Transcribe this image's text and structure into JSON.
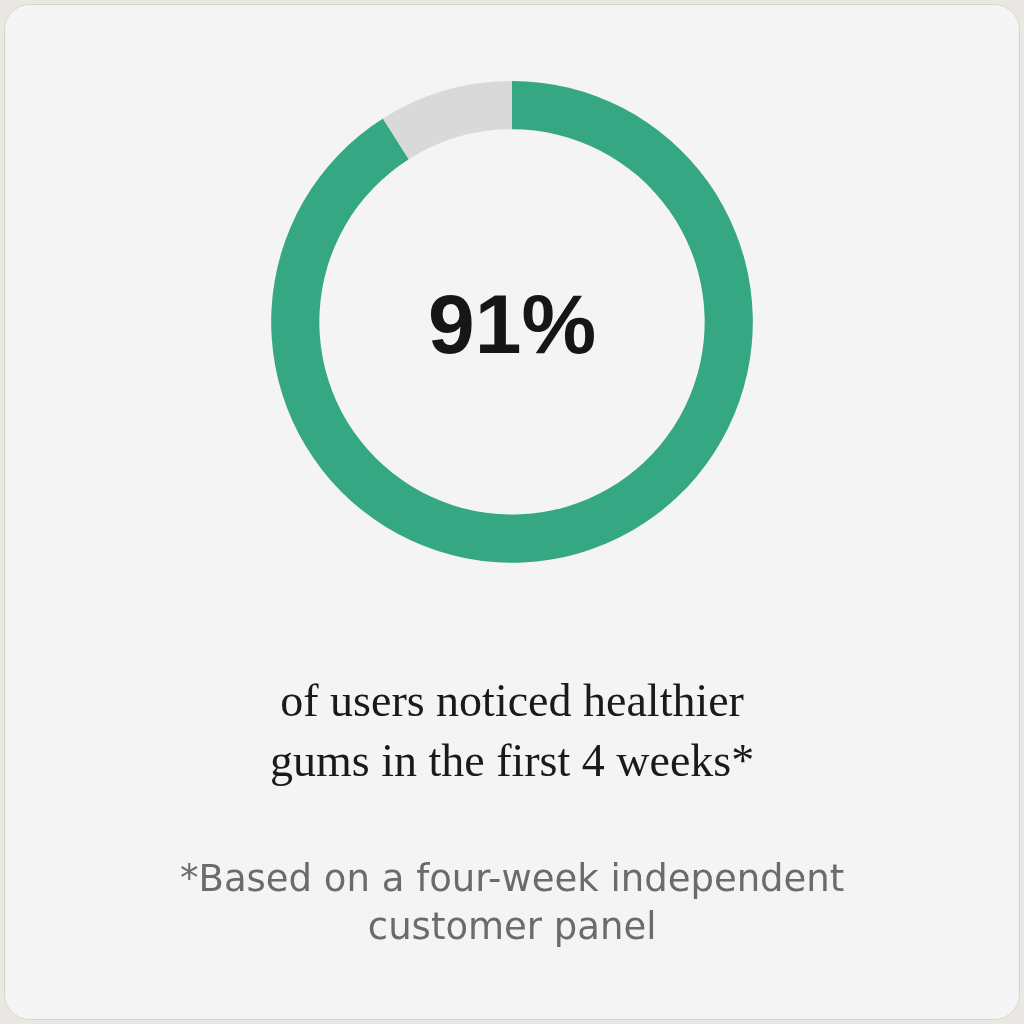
{
  "chart_data": {
    "type": "donut",
    "categories": [
      null,
      null
    ],
    "values": [
      91,
      9
    ],
    "colors": [
      "#35a883",
      "#d9d9d9"
    ],
    "annotations": [
      "91%",
      "of users noticed healthier gums in the first 4 weeks*",
      "*Based on a four-week independent customer panel"
    ]
  }
}
